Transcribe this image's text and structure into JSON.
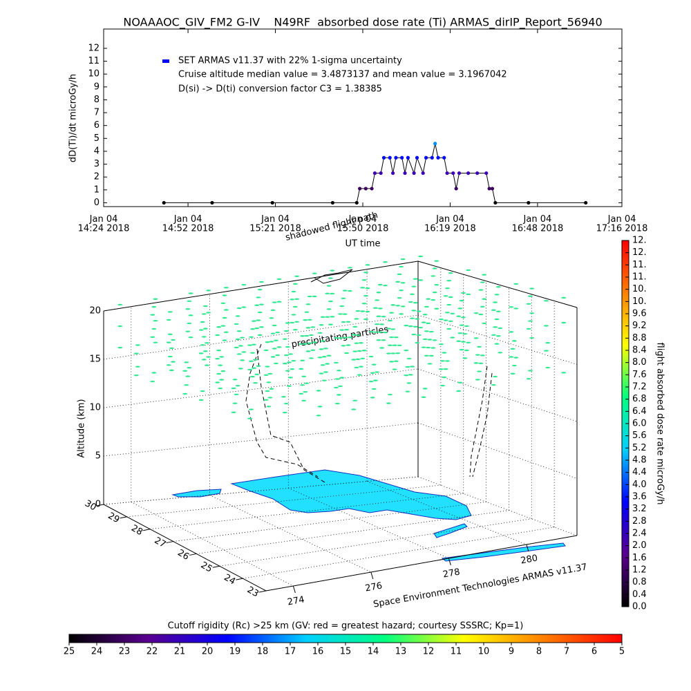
{
  "chart_data": [
    {
      "type": "line",
      "title": "NOAAAOC_GIV_FM2 G-IV    N49RF  absorbed dose rate (Ti) ARMAS_dirIP_Report_56940",
      "ylabel": "dD(Ti)/dt microGy/h",
      "xlabel": "UT time",
      "annotations": [
        "Cruise altitude median value = 3.4873137 and mean value = 3.1967042",
        "D(si) -> D(ti) conversion factor C3 = 1.38385"
      ],
      "x": [
        "2018-01-04T14:44",
        "2018-01-04T15:00",
        "2018-01-04T15:20",
        "2018-01-04T15:40",
        "2018-01-04T15:48",
        "2018-01-04T15:49",
        "2018-01-04T15:51",
        "2018-01-04T15:53",
        "2018-01-04T15:54",
        "2018-01-04T15:56",
        "2018-01-04T15:57",
        "2018-01-04T15:59",
        "2018-01-04T16:00",
        "2018-01-04T16:01",
        "2018-01-04T16:03",
        "2018-01-04T16:04",
        "2018-01-04T16:05",
        "2018-01-04T16:07",
        "2018-01-04T16:08",
        "2018-01-04T16:10",
        "2018-01-04T16:11",
        "2018-01-04T16:13",
        "2018-01-04T16:14",
        "2018-01-04T16:15",
        "2018-01-04T16:17",
        "2018-01-04T16:18",
        "2018-01-04T16:20",
        "2018-01-04T16:21",
        "2018-01-04T16:22",
        "2018-01-04T16:25",
        "2018-01-04T16:28",
        "2018-01-04T16:31",
        "2018-01-04T16:32",
        "2018-01-04T16:33",
        "2018-01-04T16:34",
        "2018-01-04T16:45",
        "2018-01-04T17:04"
      ],
      "series": [
        {
          "name": "SET ARMAS v11.37 with 22% 1-sigma uncertainty",
          "color": "#0000ff",
          "values": [
            0,
            0,
            0,
            0,
            0,
            1.1,
            1.1,
            1.1,
            2.3,
            2.3,
            3.5,
            3.5,
            2.3,
            3.5,
            3.5,
            2.3,
            3.5,
            2.3,
            3.5,
            2.3,
            3.5,
            3.5,
            4.6,
            3.5,
            3.5,
            2.3,
            2.3,
            1.1,
            2.3,
            2.3,
            2.3,
            2.3,
            1.1,
            1.1,
            0,
            0,
            0
          ]
        }
      ],
      "xlim": [
        "2018-01-04T14:24",
        "2018-01-04T17:16"
      ],
      "xticks": [
        {
          "value": "2018-01-04T14:24",
          "label": "Jan 04\n14:24 2018"
        },
        {
          "value": "2018-01-04T14:52",
          "label": "Jan 04\n14:52 2018"
        },
        {
          "value": "2018-01-04T15:21",
          "label": "Jan 04\n15:21 2018"
        },
        {
          "value": "2018-01-04T15:50",
          "label": "Jan 04\n15:50 2018"
        },
        {
          "value": "2018-01-04T16:19",
          "label": "Jan 04\n16:19 2018"
        },
        {
          "value": "2018-01-04T16:48",
          "label": "Jan 04\n16:48 2018"
        },
        {
          "value": "2018-01-04T17:16",
          "label": "Jan 04\n17:16 2018"
        }
      ],
      "ylim": [
        -0.3,
        13.5
      ],
      "yticks": [
        0,
        1,
        2,
        3,
        4,
        5,
        6,
        7,
        8,
        9,
        10,
        11,
        12
      ]
    },
    {
      "type": "scatter3d",
      "zlabel": "Altitude (km)",
      "zlim": [
        0,
        20
      ],
      "zticks": [
        0,
        5,
        10,
        15,
        20
      ],
      "ylim": [
        23,
        30
      ],
      "yticks": [
        23,
        24,
        25,
        26,
        27,
        28,
        29,
        30
      ],
      "xlim": [
        273.3,
        281.3
      ],
      "xticks": [
        274,
        276,
        278,
        280
      ],
      "annotations": [
        "precipitating particles",
        "shadowed flight path",
        "Space Environment Technologies ARMAS v11.37"
      ]
    },
    {
      "type": "colorbar",
      "orientation": "vertical",
      "title": "flight absorbed dose rate microGy/h",
      "colors": [
        "#000000",
        "#5a0090",
        "#0000ff",
        "#00d0ff",
        "#00ff80",
        "#ffff00",
        "#ff8000",
        "#ff0000"
      ],
      "lim": [
        0,
        12
      ],
      "ticks": [
        {
          "value": 0,
          "label": "0.0"
        },
        0.4,
        0.8,
        1.2,
        1.6,
        {
          "value": 2,
          "label": "2.0"
        },
        2.4,
        2.8,
        3.2,
        3.6,
        {
          "value": 4,
          "label": "4.0"
        },
        4.4,
        4.8,
        5.2,
        5.6,
        {
          "value": 6,
          "label": "6.0"
        },
        6.4,
        6.8,
        7.2,
        7.6,
        {
          "value": 8,
          "label": "8.0"
        },
        8.4,
        8.8,
        9.2,
        9.6,
        {
          "value": 10,
          "label": "10."
        },
        {
          "value": 10.4,
          "label": "10."
        },
        {
          "value": 10.8,
          "label": "11."
        },
        {
          "value": 11.2,
          "label": "11."
        },
        {
          "value": 11.6,
          "label": "12."
        },
        {
          "value": 12,
          "label": "12."
        }
      ]
    },
    {
      "type": "colorbar",
      "orientation": "horizontal",
      "title": "Cutoff rigidity (Rc) >25 km (GV: red = greatest hazard; courtesy SSSRC; Kp=1)",
      "colors": [
        "#000000",
        "#5a0090",
        "#0000ff",
        "#00d0ff",
        "#00ff80",
        "#ffff00",
        "#ff8000",
        "#ff0000"
      ],
      "lim": [
        25,
        5
      ],
      "ticks": [
        25,
        24,
        23,
        22,
        21,
        20,
        19,
        18,
        17,
        16,
        15,
        14,
        13,
        12,
        11,
        10,
        9,
        8,
        7,
        6,
        5
      ]
    }
  ]
}
